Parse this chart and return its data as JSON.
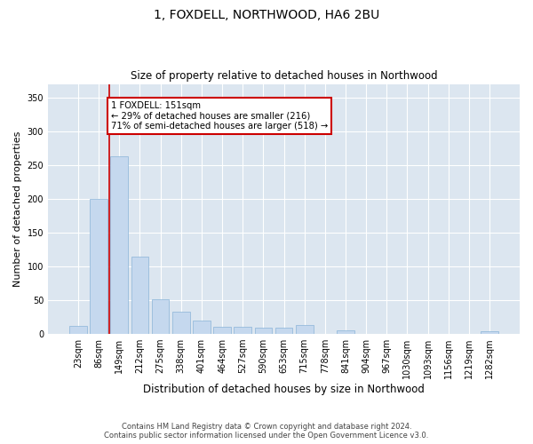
{
  "title": "1, FOXDELL, NORTHWOOD, HA6 2BU",
  "subtitle": "Size of property relative to detached houses in Northwood",
  "xlabel": "Distribution of detached houses by size in Northwood",
  "ylabel": "Number of detached properties",
  "bar_color": "#c5d8ee",
  "bar_edge_color": "#8ab4d8",
  "background_color": "#dce6f0",
  "grid_color": "#ffffff",
  "vline_color": "#cc0000",
  "vline_x_index": 2,
  "annotation_text": "1 FOXDELL: 151sqm\n← 29% of detached houses are smaller (216)\n71% of semi-detached houses are larger (518) →",
  "annotation_box_facecolor": "#ffffff",
  "annotation_box_edgecolor": "#cc0000",
  "categories": [
    "23sqm",
    "86sqm",
    "149sqm",
    "212sqm",
    "275sqm",
    "338sqm",
    "401sqm",
    "464sqm",
    "527sqm",
    "590sqm",
    "653sqm",
    "715sqm",
    "778sqm",
    "841sqm",
    "904sqm",
    "967sqm",
    "1030sqm",
    "1093sqm",
    "1156sqm",
    "1219sqm",
    "1282sqm"
  ],
  "values": [
    12,
    200,
    263,
    115,
    52,
    33,
    20,
    10,
    10,
    9,
    9,
    13,
    0,
    5,
    0,
    0,
    0,
    0,
    0,
    0,
    4
  ],
  "ylim": [
    0,
    370
  ],
  "yticks": [
    0,
    50,
    100,
    150,
    200,
    250,
    300,
    350
  ],
  "figsize": [
    6.0,
    5.0
  ],
  "dpi": 100,
  "footer_text": "Contains HM Land Registry data © Crown copyright and database right 2024.\nContains public sector information licensed under the Open Government Licence v3.0."
}
